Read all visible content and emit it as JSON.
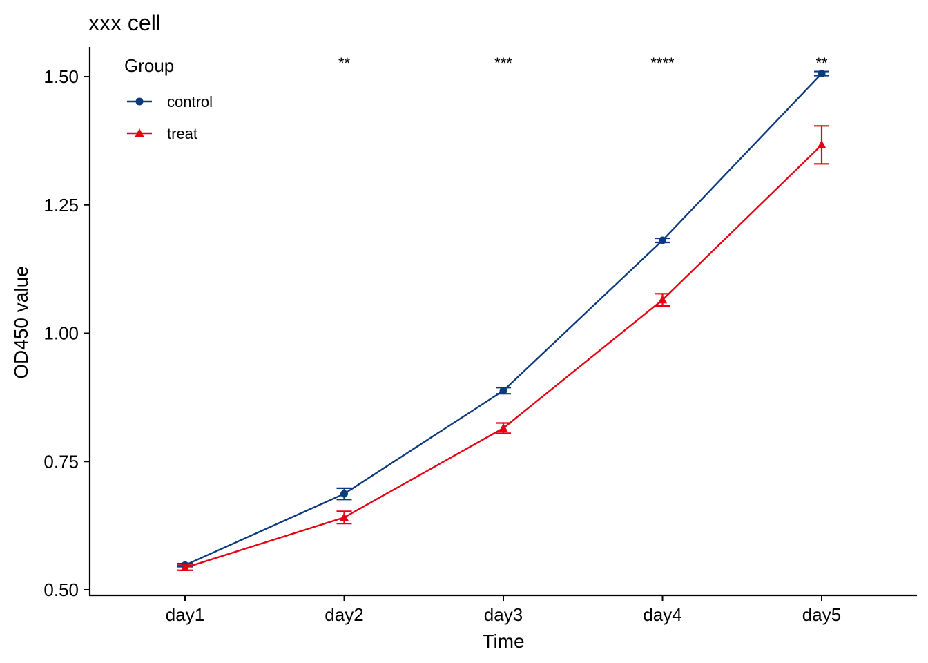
{
  "chart_data": {
    "type": "line",
    "title": "xxx cell",
    "xlabel": "Time",
    "ylabel": "OD450 value",
    "categories": [
      "day1",
      "day2",
      "day3",
      "day4",
      "day5"
    ],
    "ylim": [
      0.49,
      1.56
    ],
    "yticks": [
      0.5,
      0.75,
      1.0,
      1.25,
      1.5
    ],
    "ytick_labels": [
      "0.50",
      "0.75",
      "1.00",
      "1.25",
      "1.50"
    ],
    "grid": false,
    "legend": {
      "title": "Group",
      "position": "top-left"
    },
    "series": [
      {
        "name": "control",
        "color": "#0B3A7E",
        "marker": "circle",
        "values": [
          0.548,
          0.687,
          0.888,
          1.181,
          1.506
        ],
        "error": [
          0.003,
          0.011,
          0.006,
          0.004,
          0.004
        ]
      },
      {
        "name": "treat",
        "color": "#E60012",
        "marker": "triangle",
        "values": [
          0.543,
          0.641,
          0.815,
          1.065,
          1.367
        ],
        "error": [
          0.005,
          0.012,
          0.01,
          0.012,
          0.037
        ]
      }
    ],
    "annotations": [
      "",
      "**",
      "***",
      "****",
      "**"
    ]
  }
}
